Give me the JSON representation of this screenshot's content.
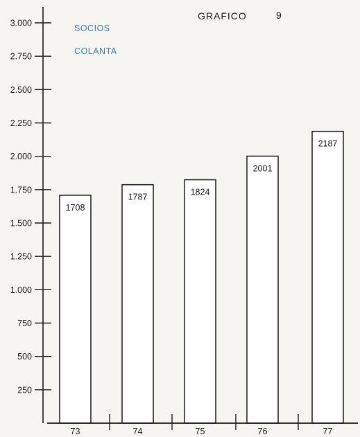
{
  "chart_data": {
    "type": "bar",
    "title": "GRAFICO",
    "figure_number": "9",
    "legend_lines": [
      "SOCIOS",
      "COLANTA"
    ],
    "legend_color": "#3a7fae",
    "categories": [
      "73",
      "74",
      "75",
      "76",
      "77"
    ],
    "values": [
      1708,
      1787,
      1824,
      2001,
      2187
    ],
    "value_labels": [
      "1708",
      "1787",
      "1824",
      "2001",
      "2187"
    ],
    "ylim": [
      0,
      3000
    ],
    "yticks": [
      250,
      500,
      750,
      1000,
      1250,
      1500,
      1750,
      2000,
      2250,
      2500,
      2750,
      3000
    ],
    "ytick_labels": [
      "250",
      "500",
      "750",
      "1.000",
      "1.250",
      "1.500",
      "1.750",
      "2.000",
      "2.250",
      "2.500",
      "2.750",
      "3.000"
    ],
    "bar_fill": "#ffffff",
    "line_color": "#1a1a1a",
    "grid": false
  }
}
